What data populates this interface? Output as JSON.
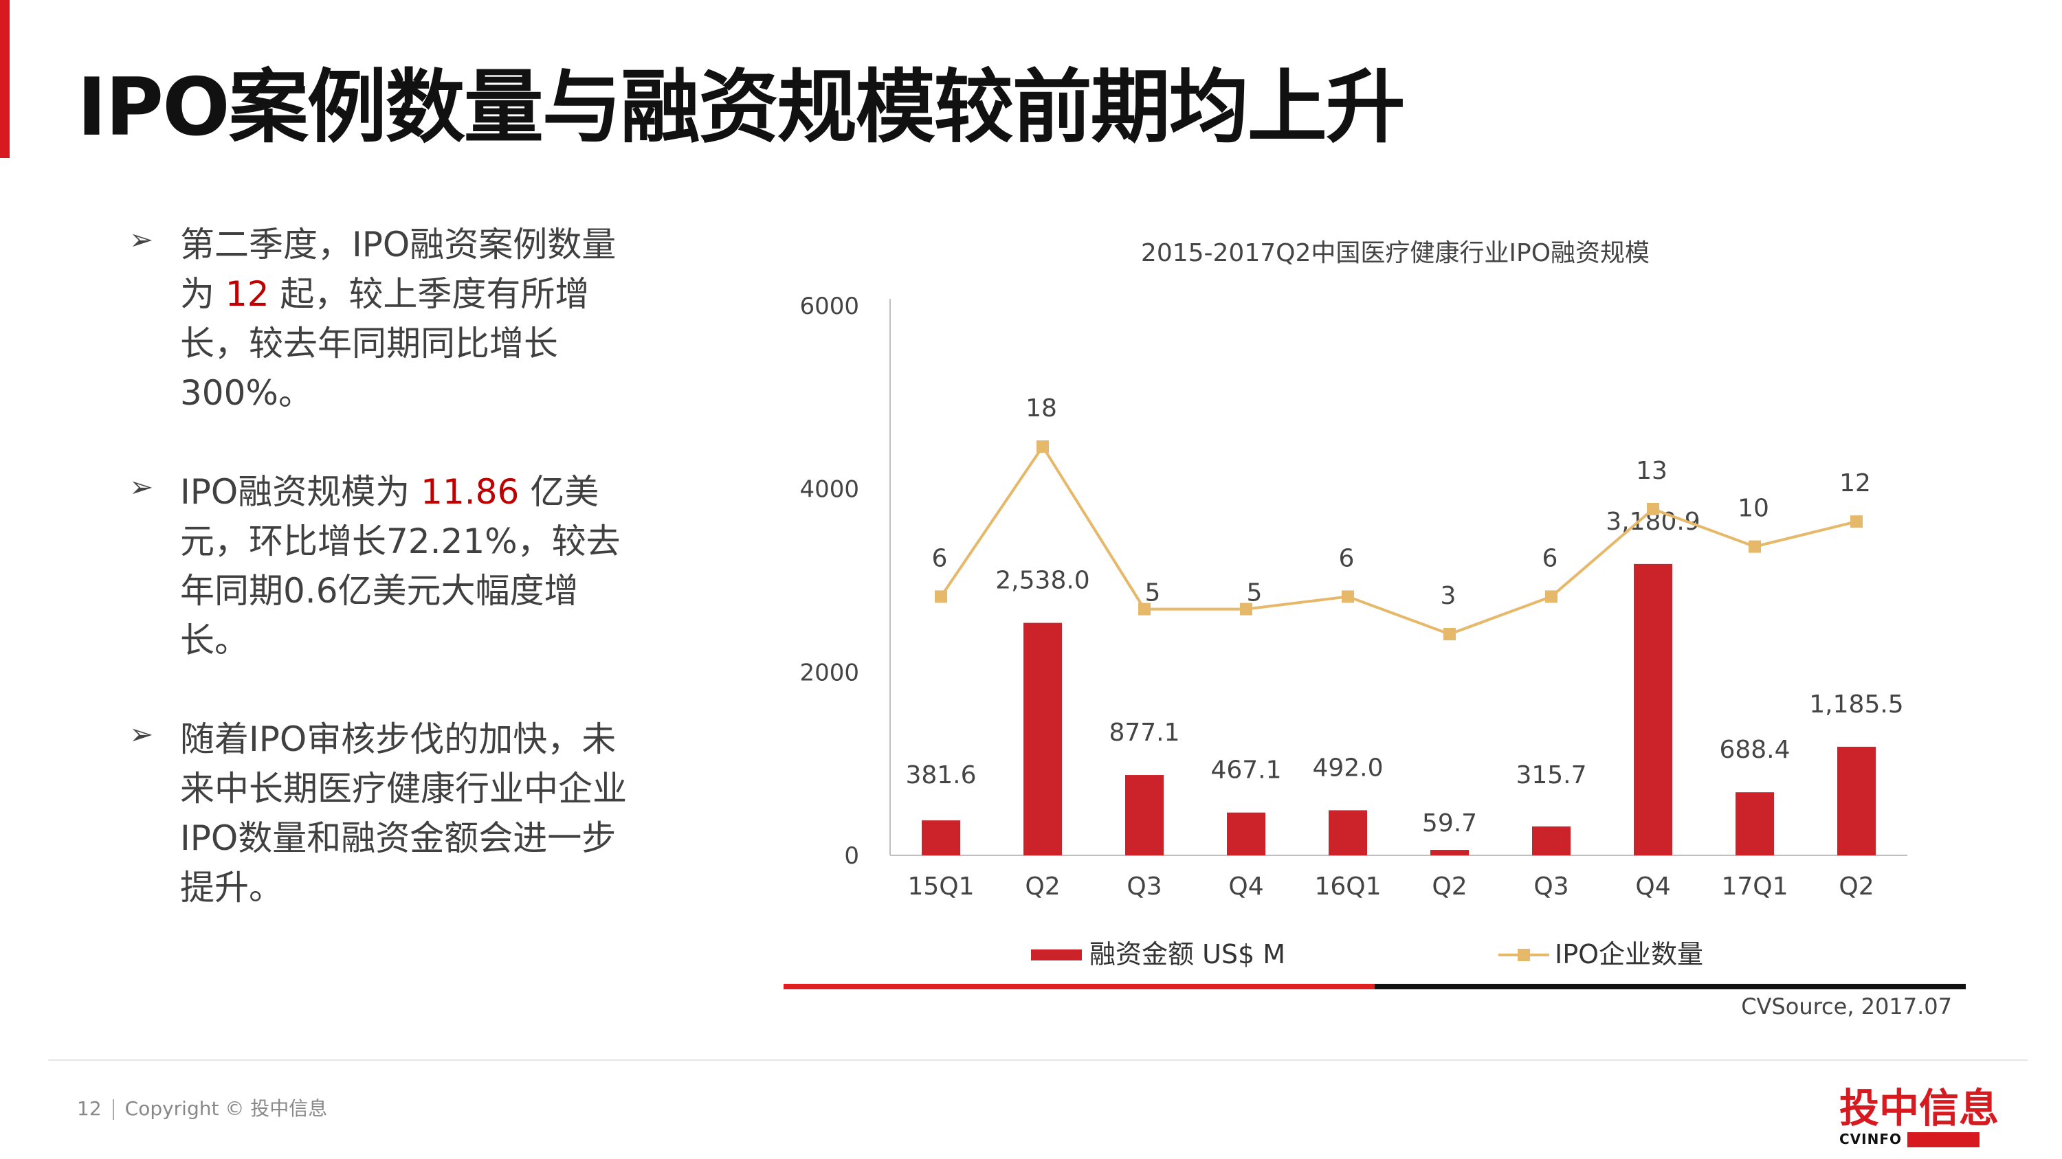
{
  "slide": {
    "title": "IPO案例数量与融资规模较前期均上升",
    "page_number": "12",
    "copyright": "Copyright © 投中信息",
    "source": "CVSource, 2017.07",
    "logo_text": "投中信息",
    "logo_sub": "CVINFO"
  },
  "bullets": [
    {
      "marker": "➢",
      "before": "第二季度，IPO融资案例数量为 ",
      "highlight": "12",
      "after": " 起，较上季度有所增长，较去年同期同比增长300%。"
    },
    {
      "marker": "➢",
      "before": "IPO融资规模为 ",
      "highlight": "11.86",
      "after": " 亿美元，环比增长72.21%，较去年同期0.6亿美元大幅度增长。"
    },
    {
      "marker": "➢",
      "before": "随着IPO审核步伐的加快，未来中长期医疗健康行业中企业IPO数量和融资金额会进一步提升。",
      "highlight": "",
      "after": ""
    }
  ],
  "colors": {
    "accent": "#d71920",
    "bar": "#cc2229",
    "line": "#e6b86a",
    "highlight": "#c00000"
  },
  "chart_data": {
    "type": "bar",
    "title": "2015-2017Q2中国医疗健康行业IPO融资规模",
    "categories": [
      "15Q1",
      "Q2",
      "Q3",
      "Q4",
      "16Q1",
      "Q2",
      "Q3",
      "Q4",
      "17Q1",
      "Q2"
    ],
    "ylim": [
      0,
      6000
    ],
    "yticks": [
      "0",
      "2000",
      "4000",
      "6000"
    ],
    "legend_position": "bottom",
    "series": [
      {
        "name": "融资金额 US$ M",
        "type": "bar",
        "values": [
          381.6,
          2538.0,
          877.1,
          467.1,
          492.0,
          59.7,
          315.7,
          3180.9,
          688.4,
          1185.5
        ],
        "labels": [
          "381.6",
          "2,538.0",
          "877.1",
          "467.1",
          "492.0",
          "59.7",
          "315.7",
          "3,180.9",
          "688.4",
          "1,185.5"
        ]
      },
      {
        "name": "IPO企业数量",
        "type": "line",
        "values": [
          6,
          18,
          5,
          5,
          6,
          3,
          6,
          13,
          10,
          12
        ],
        "labels": [
          "6",
          "18",
          "5",
          "5",
          "6",
          "3",
          "6",
          "13",
          "10",
          "12"
        ]
      }
    ]
  }
}
